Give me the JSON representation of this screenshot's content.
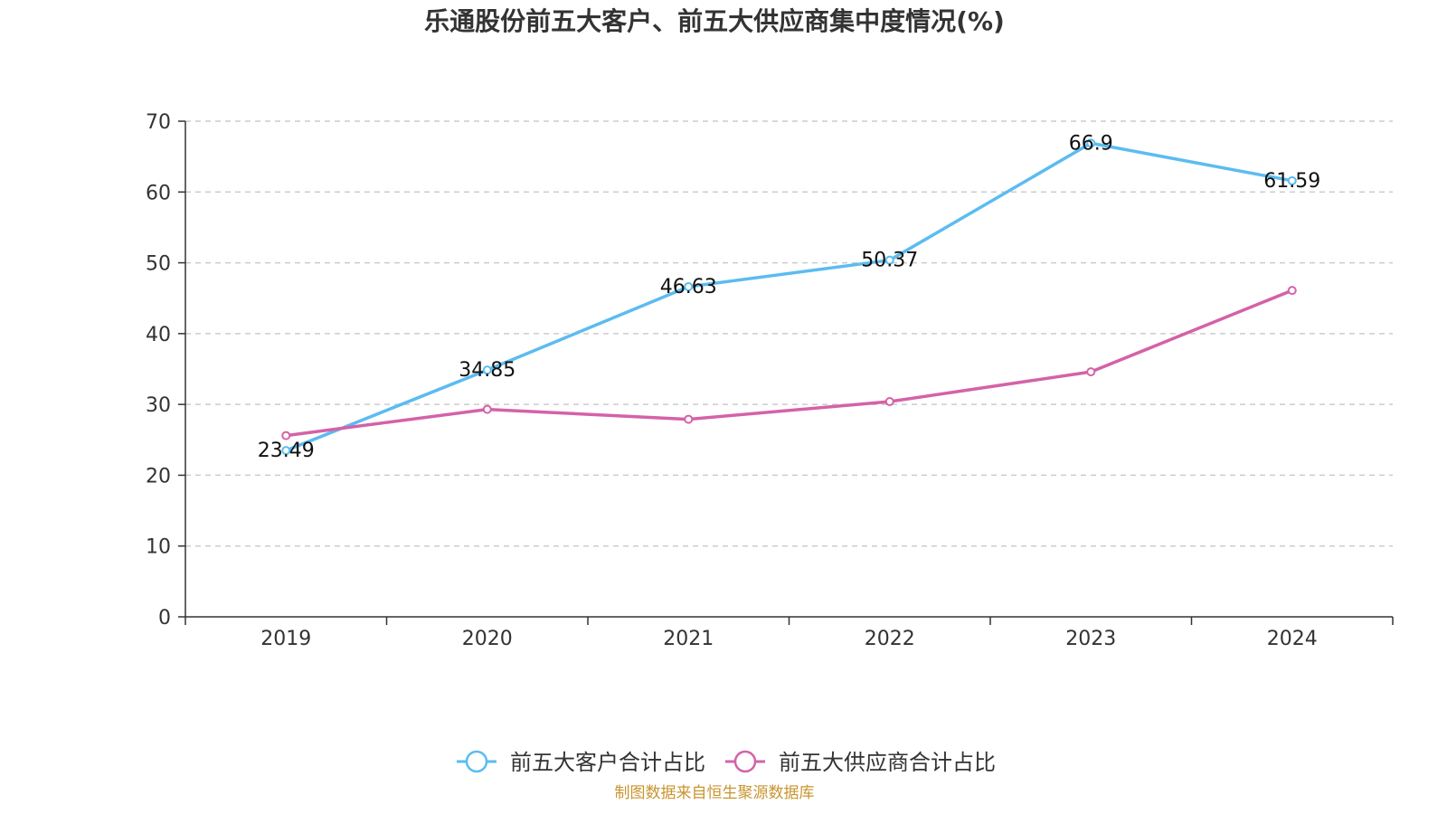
{
  "chart_data": {
    "type": "line",
    "title": "乐通股份前五大客户、前五大供应商集中度情况(%)",
    "xlabel": "",
    "ylabel": "",
    "categories": [
      "2019",
      "2020",
      "2021",
      "2022",
      "2023",
      "2024"
    ],
    "ylim": [
      0,
      70
    ],
    "yticks": [
      0,
      10,
      20,
      30,
      40,
      50,
      60,
      70
    ],
    "grid": true,
    "legend_position": "bottom",
    "series": [
      {
        "name": "前五大客户合计占比",
        "color": "#5bbcf0",
        "values": [
          23.49,
          34.85,
          46.63,
          50.37,
          66.9,
          61.59
        ],
        "labels": [
          "23.49",
          "34.85",
          "46.63",
          "50.37",
          "66.9",
          "61.59"
        ],
        "show_labels": true
      },
      {
        "name": "前五大供应商合计占比",
        "color": "#d462a8",
        "values": [
          25.6,
          29.3,
          27.9,
          30.4,
          34.6,
          46.1
        ],
        "show_labels": false
      }
    ]
  },
  "source": "制图数据来自恒生聚源数据库"
}
